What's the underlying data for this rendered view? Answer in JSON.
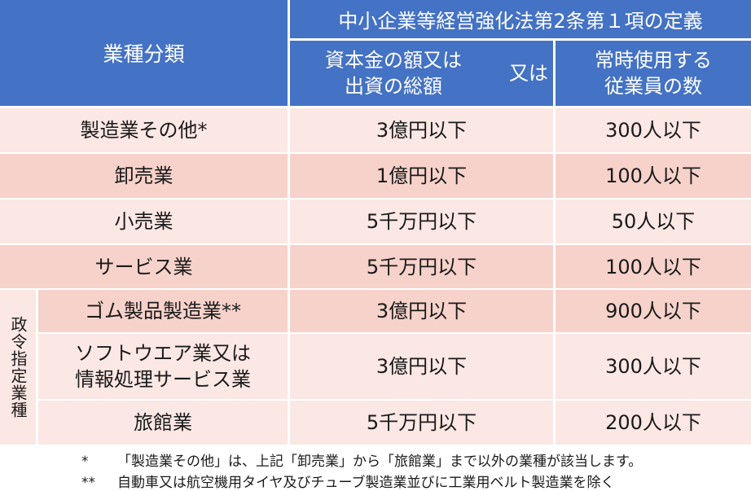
{
  "header": {
    "category_label": "業種分類",
    "definition_title": "中小企業等経営強化法第2条第１項の定義",
    "capital_label_line1": "資本金の額又は",
    "capital_label_line2": "出資の総額",
    "or_label": "又は",
    "employees_label_line1": "常時使用する",
    "employees_label_line2": "従業員の数"
  },
  "side_group_label": "政令指定業種",
  "rows": [
    {
      "category": "製造業その他*",
      "capital": "3億円以下",
      "employees": "300人以下"
    },
    {
      "category": "卸売業",
      "capital": "1億円以下",
      "employees": "100人以下"
    },
    {
      "category": "小売業",
      "capital": "5千万円以下",
      "employees": "50人以下"
    },
    {
      "category": "サービス業",
      "capital": "5千万円以下",
      "employees": "100人以下"
    },
    {
      "category": "ゴム製品製造業**",
      "capital": "3億円以下",
      "employees": "900人以下"
    },
    {
      "category_line1": "ソフトウエア業又は",
      "category_line2": "情報処理サービス業",
      "capital": "3億円以下",
      "employees": "300人以下"
    },
    {
      "category": "旅館業",
      "capital": "5千万円以下",
      "employees": "200人以下"
    }
  ],
  "notes": [
    {
      "mark": "*",
      "text": "「製造業その他」は、上記「卸売業」から「旅館業」まで以外の業種が該当します。"
    },
    {
      "mark": "**",
      "text": "自動車又は航空機用タイヤ及びチューブ製造業並びに工業用ベルト製造業を除く"
    }
  ]
}
